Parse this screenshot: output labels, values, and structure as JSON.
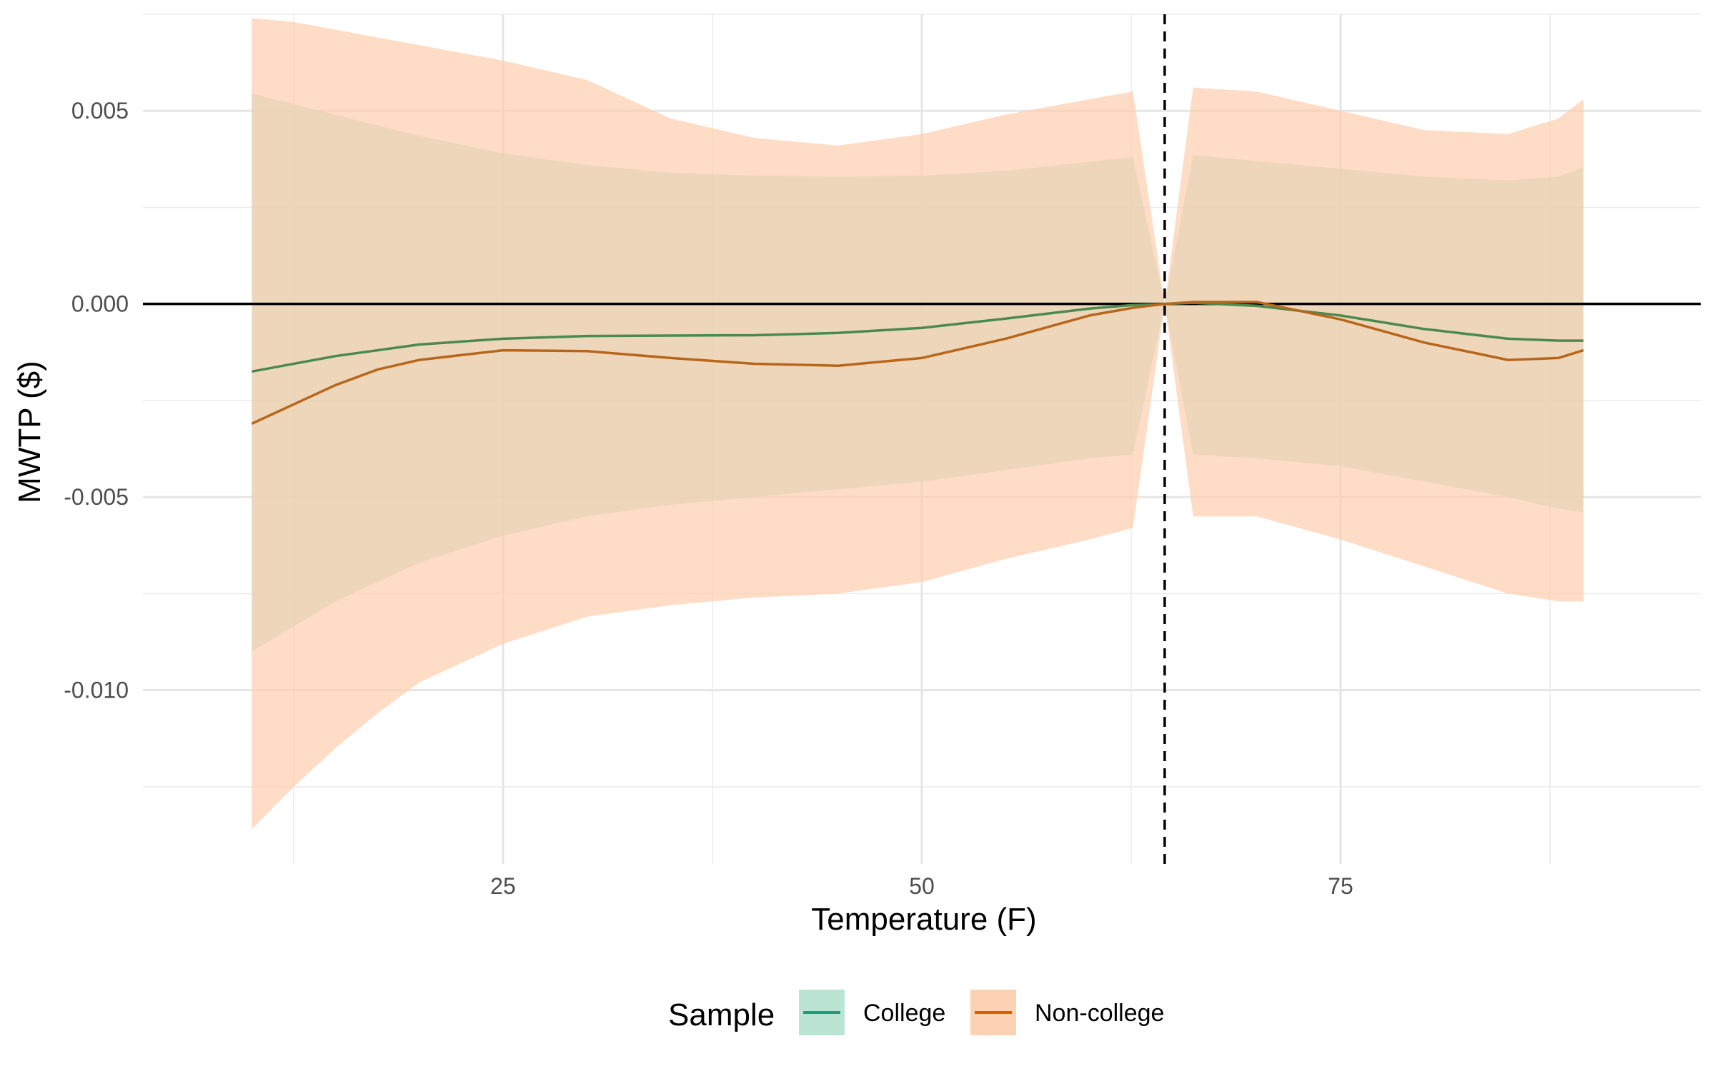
{
  "chart_data": {
    "type": "line",
    "xlabel": "Temperature (F)",
    "ylabel": "MWTP ($)",
    "xlim": [
      3.5,
      96.5
    ],
    "ylim": [
      -0.0145,
      0.0075
    ],
    "x_ticks": [
      25,
      50,
      75
    ],
    "x_tick_labels": [
      "25",
      "50",
      "75"
    ],
    "x_minor_ticks": [
      12.5,
      37.5,
      62.5,
      87.5
    ],
    "y_ticks": [
      0.005,
      0.0,
      -0.005,
      -0.01
    ],
    "y_tick_labels": [
      "0.005",
      "0.000",
      "-0.005",
      "-0.010"
    ],
    "y_minor_ticks": [
      0.0075,
      0.0025,
      -0.0025,
      -0.0075,
      -0.0125
    ],
    "reference_lines": {
      "horizontal_y": 0.0,
      "vertical_x_dashed": 64.5
    },
    "grid": true,
    "legend": {
      "title": "Sample",
      "position": "bottom",
      "entries": [
        "College",
        "Non-college"
      ]
    },
    "series": [
      {
        "name": "College",
        "line_color": "#1b9e77",
        "fill_color": "#b3e2cd",
        "segments": [
          {
            "x": [
              10,
              15,
              20,
              25,
              30,
              35,
              40,
              45,
              50,
              55,
              60,
              62.6
            ],
            "y": [
              -0.00175,
              -0.00135,
              -0.00105,
              -0.0009,
              -0.00083,
              -0.00082,
              -0.00081,
              -0.00075,
              -0.00062,
              -0.00038,
              -0.00012,
              -3e-05
            ],
            "upper": [
              0.00545,
              0.0049,
              0.00435,
              0.0039,
              0.0036,
              0.0034,
              0.00332,
              0.0033,
              0.00332,
              0.00345,
              0.00368,
              0.0038
            ],
            "lower": [
              -0.009,
              -0.0077,
              -0.0067,
              -0.006,
              -0.0055,
              -0.0052,
              -0.005,
              -0.0048,
              -0.0046,
              -0.0043,
              -0.004,
              -0.0039
            ]
          },
          {
            "x": [
              66.2,
              70,
              75,
              80,
              85,
              88,
              89.5
            ],
            "y": [
              3e-05,
              -5e-05,
              -0.0003,
              -0.00065,
              -0.0009,
              -0.00095,
              -0.00095
            ],
            "upper": [
              0.00385,
              0.0037,
              0.0035,
              0.0033,
              0.0032,
              0.0033,
              0.00355
            ],
            "lower": [
              -0.0039,
              -0.004,
              -0.0042,
              -0.0046,
              -0.005,
              -0.0053,
              -0.0054
            ]
          }
        ]
      },
      {
        "name": "Non-college",
        "line_color": "#d95f02",
        "fill_color": "#fdcdac",
        "segments": [
          {
            "x": [
              10,
              12.5,
              15,
              17.5,
              20,
              25,
              30,
              35,
              40,
              45,
              50,
              55,
              60,
              62.6
            ],
            "y": [
              -0.0031,
              -0.0026,
              -0.0021,
              -0.0017,
              -0.00145,
              -0.0012,
              -0.00122,
              -0.0014,
              -0.00155,
              -0.0016,
              -0.0014,
              -0.0009,
              -0.0003,
              -0.0001
            ],
            "upper": [
              0.0074,
              0.0073,
              0.0071,
              0.0069,
              0.0067,
              0.0063,
              0.0058,
              0.0048,
              0.0043,
              0.0041,
              0.0044,
              0.0049,
              0.0053,
              0.0055
            ],
            "lower": [
              -0.0136,
              -0.0125,
              -0.0115,
              -0.0106,
              -0.0098,
              -0.0088,
              -0.0081,
              -0.0078,
              -0.0076,
              -0.0075,
              -0.0072,
              -0.0066,
              -0.0061,
              -0.0058
            ]
          },
          {
            "x": [
              66.2,
              70,
              75,
              80,
              85,
              88,
              89.5
            ],
            "y": [
              5e-05,
              5e-05,
              -0.0004,
              -0.001,
              -0.00145,
              -0.0014,
              -0.0012
            ],
            "upper": [
              0.0056,
              0.0055,
              0.005,
              0.0045,
              0.0044,
              0.0048,
              0.0053
            ],
            "lower": [
              -0.0055,
              -0.0055,
              -0.0061,
              -0.0068,
              -0.0075,
              -0.0077,
              -0.0077
            ]
          }
        ]
      }
    ]
  }
}
